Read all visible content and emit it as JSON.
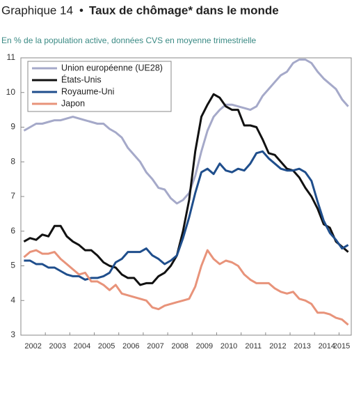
{
  "chart_data": {
    "type": "line",
    "title": {
      "label": "Graphique 14",
      "text": "Taux de chômage* dans le monde"
    },
    "subtitle": "En % de la population active, données CVS en moyenne trimestrielle",
    "categories": [
      "2002",
      null,
      null,
      null,
      "2003",
      null,
      null,
      null,
      "2004",
      null,
      null,
      null,
      "2005",
      null,
      null,
      null,
      "2006",
      null,
      null,
      null,
      "2007",
      null,
      null,
      null,
      "2008",
      null,
      null,
      null,
      "2009",
      null,
      null,
      null,
      "2010",
      null,
      null,
      null,
      "2011",
      null,
      null,
      null,
      "2012",
      null,
      null,
      null,
      "2013",
      null,
      null,
      null,
      "2014",
      null,
      null,
      null,
      "2015",
      null
    ],
    "ylim": [
      3,
      11
    ],
    "yticks": [
      3,
      4,
      5,
      6,
      7,
      8,
      9,
      10,
      11
    ],
    "legend": "upper left",
    "series": [
      {
        "name": "Union européenne (UE28)",
        "color": "#a5a9c9",
        "values": [
          8.9,
          9.0,
          9.1,
          9.1,
          9.15,
          9.2,
          9.2,
          9.25,
          9.3,
          9.25,
          9.2,
          9.15,
          9.1,
          9.1,
          8.95,
          8.85,
          8.7,
          8.4,
          8.2,
          8.0,
          7.7,
          7.5,
          7.25,
          7.2,
          6.95,
          6.8,
          6.9,
          7.1,
          7.6,
          8.3,
          8.9,
          9.3,
          9.5,
          9.65,
          9.65,
          9.6,
          9.55,
          9.5,
          9.6,
          9.9,
          10.1,
          10.3,
          10.5,
          10.6,
          10.85,
          10.95,
          10.95,
          10.85,
          10.6,
          10.4,
          10.25,
          10.1,
          9.8,
          9.6
        ]
      },
      {
        "name": "États-Unis",
        "color": "#111111",
        "values": [
          5.7,
          5.8,
          5.75,
          5.9,
          5.85,
          6.15,
          6.15,
          5.85,
          5.7,
          5.6,
          5.45,
          5.45,
          5.3,
          5.1,
          5.0,
          4.95,
          4.75,
          4.65,
          4.65,
          4.45,
          4.5,
          4.5,
          4.7,
          4.8,
          5.0,
          5.3,
          6.0,
          6.9,
          8.3,
          9.3,
          9.65,
          9.95,
          9.85,
          9.6,
          9.5,
          9.5,
          9.05,
          9.05,
          9.0,
          8.65,
          8.25,
          8.2,
          8.0,
          7.8,
          7.75,
          7.55,
          7.25,
          7.0,
          6.65,
          6.2,
          6.1,
          5.7,
          5.55,
          5.4
        ]
      },
      {
        "name": "Royaume-Uni",
        "color": "#1f4e8c",
        "values": [
          5.15,
          5.15,
          5.05,
          5.05,
          4.95,
          4.95,
          4.85,
          4.75,
          4.7,
          4.7,
          4.6,
          4.65,
          4.65,
          4.7,
          4.8,
          5.1,
          5.2,
          5.4,
          5.4,
          5.4,
          5.5,
          5.3,
          5.2,
          5.05,
          5.15,
          5.3,
          5.8,
          6.4,
          7.1,
          7.7,
          7.8,
          7.65,
          7.95,
          7.75,
          7.7,
          7.8,
          7.75,
          7.95,
          8.25,
          8.3,
          8.1,
          7.95,
          7.8,
          7.75,
          7.75,
          7.8,
          7.7,
          7.45,
          6.85,
          6.3,
          5.95,
          5.75,
          5.5,
          5.6
        ]
      },
      {
        "name": "Japon",
        "color": "#e8937a",
        "values": [
          5.25,
          5.4,
          5.45,
          5.35,
          5.35,
          5.4,
          5.2,
          5.05,
          4.9,
          4.75,
          4.8,
          4.55,
          4.55,
          4.45,
          4.3,
          4.45,
          4.2,
          4.15,
          4.1,
          4.05,
          4.0,
          3.8,
          3.75,
          3.85,
          3.9,
          3.95,
          4.0,
          4.05,
          4.4,
          5.0,
          5.45,
          5.2,
          5.05,
          5.15,
          5.1,
          5.0,
          4.75,
          4.6,
          4.5,
          4.5,
          4.5,
          4.35,
          4.25,
          4.2,
          4.25,
          4.05,
          4.0,
          3.9,
          3.65,
          3.65,
          3.6,
          3.5,
          3.45,
          3.3
        ]
      }
    ]
  }
}
